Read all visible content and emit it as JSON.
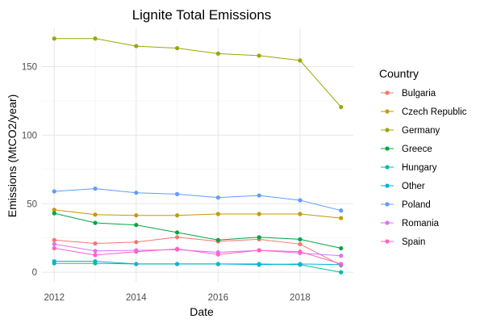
{
  "chart_data": {
    "type": "line",
    "title": "Lignite Total Emissions",
    "xlabel": "Date",
    "ylabel": "Emissions (MtCO2/year)",
    "xlim": [
      2011.7,
      2019.3
    ],
    "ylim": [
      -7,
      178
    ],
    "x_ticks": [
      2012,
      2014,
      2016,
      2018
    ],
    "y_ticks": [
      0,
      50,
      100,
      150
    ],
    "grid": true,
    "legend": {
      "title": "Country",
      "position": "right"
    },
    "x": [
      2012,
      2013,
      2014,
      2015,
      2016,
      2017,
      2018,
      2019
    ],
    "series": [
      {
        "name": "Bulgaria",
        "color": "#F8766D",
        "values": [
          23.5,
          21,
          22,
          25.5,
          22.5,
          24,
          20.5,
          5
        ]
      },
      {
        "name": "Czech Republic",
        "color": "#C49A00",
        "values": [
          45.5,
          42,
          41.5,
          41.5,
          42.5,
          42.5,
          42.5,
          39.5
        ]
      },
      {
        "name": "Germany",
        "color": "#99A800",
        "values": [
          170.5,
          170.5,
          165,
          163.5,
          159.5,
          158,
          154.5,
          120.5
        ]
      },
      {
        "name": "Greece",
        "color": "#00A545",
        "values": [
          43,
          36,
          34.5,
          29,
          23.5,
          25.5,
          24,
          17.5
        ]
      },
      {
        "name": "Hungary",
        "color": "#00BF9F",
        "values": [
          6.5,
          6.5,
          6,
          6,
          6,
          6,
          5.5,
          0
        ]
      },
      {
        "name": "Other",
        "color": "#00B4D8",
        "values": [
          8,
          8,
          6,
          6,
          6,
          5.5,
          6,
          5.5
        ]
      },
      {
        "name": "Poland",
        "color": "#619CFF",
        "values": [
          59,
          61,
          58,
          57,
          54.5,
          56,
          52.5,
          45
        ]
      },
      {
        "name": "Romania",
        "color": "#DB72FB",
        "values": [
          20.5,
          15.5,
          16,
          16.5,
          14.5,
          16,
          14,
          12
        ]
      },
      {
        "name": "Spain",
        "color": "#FF61C3",
        "values": [
          17.5,
          12.5,
          15,
          17,
          13,
          16,
          15,
          6
        ]
      }
    ]
  }
}
